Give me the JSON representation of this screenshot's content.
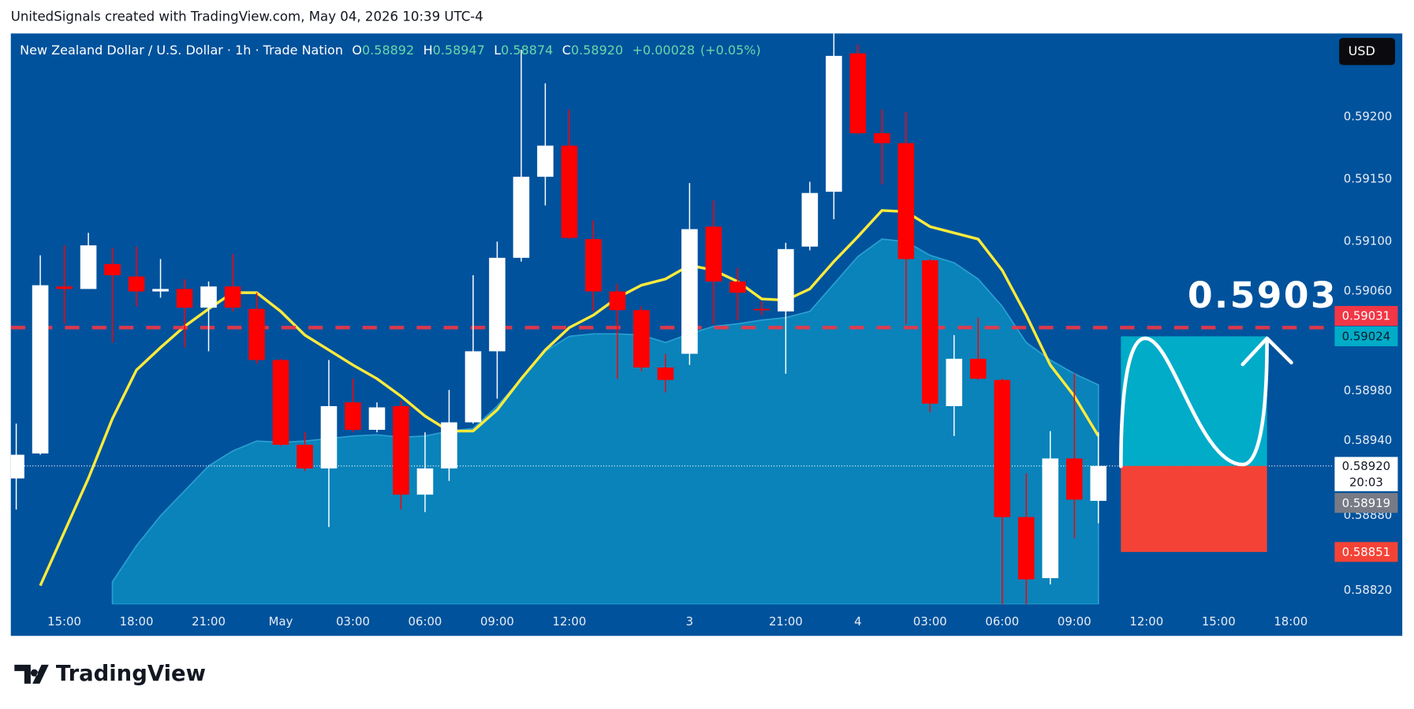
{
  "header": "UnitedSignals created with TradingView.com, May 04, 2026 10:39 UTC-4",
  "logo": "TradingView",
  "currency_button": "USD",
  "chart_data": {
    "type": "candlestick",
    "legend": {
      "symbol": "New Zealand Dollar / U.S. Dollar · 1h · Trade Nation",
      "open_label": "O",
      "open": 0.58892,
      "high_label": "H",
      "high": 0.58947,
      "low_label": "L",
      "low": 0.58874,
      "close_label": "C",
      "close": {
        "value": 0.5892,
        "label": "0.58920"
      },
      "change": {
        "value": 0.00028,
        "label": "+0.00028"
      },
      "change_percent": {
        "value": 0.05,
        "label": "(+0.05%)"
      }
    },
    "categories": [
      null,
      null,
      "15:00",
      null,
      null,
      "18:00",
      null,
      null,
      "21:00",
      null,
      null,
      "May",
      null,
      null,
      "03:00",
      null,
      null,
      "06:00",
      null,
      null,
      "09:00",
      null,
      null,
      "12:00",
      null,
      null,
      null,
      null,
      "3",
      null,
      null,
      null,
      "21:00",
      null,
      null,
      "4",
      null,
      null,
      "03:00",
      null,
      null,
      "06:00",
      null,
      null,
      "09:00",
      null,
      null,
      "12:00",
      null,
      null,
      "15:00",
      null,
      null,
      "18:00"
    ],
    "up_color": "#ffffff",
    "down_color": "#ff0000",
    "open": [
      0.5891,
      0.5893,
      0.59064,
      0.59062,
      0.59082,
      0.59072,
      0.5906,
      0.59062,
      0.59047,
      0.59064,
      0.59046,
      0.59005,
      0.58937,
      0.58918,
      0.58971,
      0.58949,
      0.58968,
      0.58897,
      0.58918,
      0.58955,
      0.59012,
      0.59087,
      0.59152,
      0.59177,
      0.59102,
      0.5906,
      0.59045,
      0.58999,
      0.5901,
      0.59112,
      0.59068,
      0.59046,
      0.59044,
      0.59096,
      0.5914,
      0.59251,
      0.59187,
      0.59179,
      0.59085,
      0.58968,
      0.59006,
      0.58989,
      0.58879,
      0.5883,
      0.58926,
      0.58892,
      null,
      null,
      null,
      null,
      null,
      null,
      null,
      null
    ],
    "high": [
      0.58954,
      0.59089,
      0.59097,
      0.59107,
      0.59095,
      0.59096,
      0.59086,
      0.5907,
      0.59068,
      0.5909,
      0.59059,
      0.59006,
      0.58947,
      0.59005,
      0.5899,
      0.58971,
      0.58972,
      0.58947,
      0.58981,
      0.59073,
      0.591,
      0.59254,
      0.59227,
      0.59206,
      0.59117,
      0.59066,
      0.59048,
      0.5901,
      0.59147,
      0.59133,
      0.59079,
      0.59052,
      0.59099,
      0.59148,
      0.59267,
      0.59258,
      0.59206,
      0.59204,
      0.59086,
      0.59025,
      0.59039,
      0.5899,
      0.58914,
      0.58948,
      0.58994,
      0.58947,
      null,
      null,
      null,
      null,
      null,
      null,
      null,
      null
    ],
    "low": [
      0.58885,
      0.58929,
      0.59034,
      0.59062,
      0.59019,
      0.59048,
      0.59055,
      0.59015,
      0.59012,
      0.59044,
      0.59002,
      0.58936,
      0.58916,
      0.58871,
      0.58947,
      0.58947,
      0.58885,
      0.58883,
      0.58908,
      0.58954,
      0.58974,
      0.59084,
      0.59129,
      0.59102,
      0.59044,
      0.5899,
      0.58996,
      0.58979,
      0.59001,
      0.59034,
      0.59037,
      0.59041,
      0.58994,
      0.59093,
      0.59118,
      0.59186,
      0.59146,
      0.59034,
      0.58963,
      0.58944,
      0.58989,
      0.58809,
      0.58809,
      0.58825,
      0.58862,
      0.58874,
      null,
      null,
      null,
      null,
      null,
      null,
      null,
      null
    ],
    "close": [
      0.58929,
      0.59065,
      0.59062,
      0.59097,
      0.59073,
      0.5906,
      0.59062,
      0.59047,
      0.59064,
      0.59047,
      0.59005,
      0.58937,
      0.58918,
      0.58968,
      0.58949,
      0.58967,
      0.58897,
      0.58918,
      0.58955,
      0.59012,
      0.59087,
      0.59152,
      0.59177,
      0.59103,
      0.5906,
      0.59045,
      0.58999,
      0.58989,
      0.5911,
      0.59068,
      0.59059,
      0.59045,
      0.59094,
      0.59139,
      0.59249,
      0.59187,
      0.59179,
      0.59086,
      0.5897,
      0.59006,
      0.5899,
      0.58879,
      0.58829,
      0.58926,
      0.58893,
      0.5892,
      null,
      null,
      null,
      null,
      null,
      null,
      null,
      null
    ],
    "indicators": [
      {
        "kind": "area",
        "color": "#0a8cc0",
        "values": [
          null,
          null,
          null,
          null,
          0.58827,
          0.58856,
          0.5888,
          0.589,
          0.5892,
          0.58932,
          0.5894,
          0.58939,
          0.5894,
          0.58942,
          0.58944,
          0.58945,
          0.58943,
          0.58944,
          0.58948,
          0.5895,
          0.58968,
          0.5899,
          0.59012,
          0.59024,
          0.59026,
          0.59026,
          0.59025,
          0.59019,
          0.59026,
          0.59032,
          0.59034,
          0.59037,
          0.59039,
          0.59044,
          0.59066,
          0.59088,
          0.59102,
          0.591,
          0.59089,
          0.59083,
          0.5907,
          0.59048,
          0.59019,
          0.59005,
          0.58994,
          0.58985,
          null,
          null,
          null,
          null,
          null,
          null,
          null,
          null
        ]
      },
      {
        "kind": "line",
        "color": "#ffeb3b",
        "values": [
          null,
          0.58824,
          0.58867,
          0.5891,
          0.58958,
          0.58997,
          0.59015,
          0.59032,
          0.59046,
          0.59059,
          0.59059,
          0.59044,
          0.59025,
          0.59013,
          0.59001,
          0.5899,
          0.58976,
          0.5896,
          0.58948,
          0.58948,
          0.58965,
          0.5899,
          0.59013,
          0.59031,
          0.59041,
          0.59055,
          0.59065,
          0.5907,
          0.59081,
          0.59077,
          0.59068,
          0.59054,
          0.59053,
          0.59062,
          0.59084,
          0.59104,
          0.59125,
          0.59124,
          0.59112,
          0.59107,
          0.59102,
          0.59077,
          0.59041,
          0.59001,
          0.58976,
          0.58944,
          null,
          null,
          null,
          null,
          null,
          null,
          null,
          null
        ]
      }
    ],
    "ylim": [
      0.58809,
      0.59267
    ],
    "yticks": [
      {
        "value": 0.592,
        "label": "0.59200"
      },
      {
        "value": 0.5915,
        "label": "0.59150"
      },
      {
        "value": 0.591,
        "label": "0.59100"
      },
      {
        "value": 0.5906,
        "label": "0.59060"
      },
      {
        "value": 0.5898,
        "label": "0.58980"
      },
      {
        "value": 0.5894,
        "label": "0.58940"
      },
      {
        "value": 0.5888,
        "label": "0.58880"
      },
      {
        "value": 0.5882,
        "label": "0.58820"
      }
    ],
    "grid": false,
    "alert_line": {
      "price": 0.59031,
      "color": "#f23645"
    },
    "position": {
      "target": 0.59024,
      "stop": 0.58851,
      "target_color": "#00acc8",
      "stop_color": "#f44336"
    },
    "last_price": {
      "price": {
        "value": 0.5892,
        "label": "0.58920"
      },
      "countdown": "20:03"
    },
    "bid_price": 0.58919,
    "annotation": "0.5903"
  }
}
